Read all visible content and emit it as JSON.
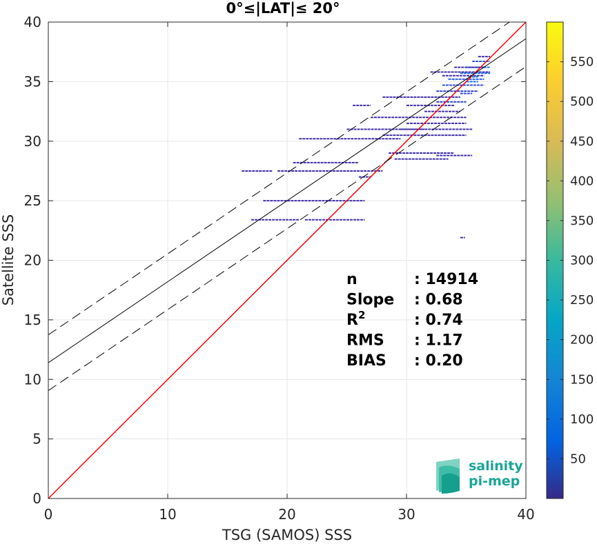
{
  "chart_data": {
    "type": "heatmap",
    "title": "0°≤|LAT|≤ 20°",
    "xlabel": "TSG (SAMOS) SSS",
    "ylabel": "Satellite SSS",
    "xlim": [
      0,
      40
    ],
    "ylim": [
      0,
      40
    ],
    "xticks": [
      0,
      10,
      20,
      30,
      40
    ],
    "yticks": [
      0,
      5,
      10,
      15,
      20,
      25,
      30,
      35,
      40
    ],
    "grid": true,
    "identity_line": {
      "color": "#ff0000",
      "intercept": 0,
      "slope": 1
    },
    "regression": {
      "intercept": 11.4,
      "slope": 0.68,
      "band_offset": 2.34,
      "color": "#000000"
    },
    "stats": [
      {
        "label": "n",
        "value": ": 14914"
      },
      {
        "label": "Slope",
        "value": ": 0.68"
      },
      {
        "label": "R",
        "sup": "2",
        "value": ": 0.74"
      },
      {
        "label": "RMS",
        "value": ": 1.17"
      },
      {
        "label": "BIAS",
        "value": ": 0.20"
      }
    ],
    "colorbar": {
      "min": 0,
      "max": 600,
      "ticks": [
        50,
        100,
        150,
        200,
        250,
        300,
        350,
        400,
        450,
        500,
        550
      ],
      "colormap": "parula"
    },
    "density_segments": [
      {
        "x0": 16.2,
        "x1": 18.8,
        "y": 27.5,
        "c": 1
      },
      {
        "x0": 19.2,
        "x1": 28.0,
        "y": 27.5,
        "c": 1
      },
      {
        "x0": 17.0,
        "x1": 21.0,
        "y": 23.4,
        "c": 1
      },
      {
        "x0": 21.5,
        "x1": 26.5,
        "y": 23.4,
        "c": 1
      },
      {
        "x0": 18.0,
        "x1": 26.5,
        "y": 25.0,
        "c": 1
      },
      {
        "x0": 20.5,
        "x1": 26.0,
        "y": 28.2,
        "c": 1
      },
      {
        "x0": 21.0,
        "x1": 29.5,
        "y": 30.2,
        "c": 1
      },
      {
        "x0": 25.0,
        "x1": 31.5,
        "y": 31.0,
        "c": 1
      },
      {
        "x0": 28.0,
        "x1": 35.0,
        "y": 30.5,
        "c": 1
      },
      {
        "x0": 28.5,
        "x1": 34.0,
        "y": 29.0,
        "c": 1
      },
      {
        "x0": 29.0,
        "x1": 33.5,
        "y": 28.5,
        "c": 1
      },
      {
        "x0": 32.5,
        "x1": 35.5,
        "y": 28.8,
        "c": 1
      },
      {
        "x0": 29.5,
        "x1": 35.5,
        "y": 31.0,
        "c": 1
      },
      {
        "x0": 30.0,
        "x1": 35.0,
        "y": 31.5,
        "c": 1
      },
      {
        "x0": 27.0,
        "x1": 35.0,
        "y": 32.0,
        "c": 1
      },
      {
        "x0": 31.5,
        "x1": 34.5,
        "y": 32.5,
        "c": 1
      },
      {
        "x0": 30.0,
        "x1": 34.0,
        "y": 33.0,
        "c": 1
      },
      {
        "x0": 32.5,
        "x1": 35.0,
        "y": 33.3,
        "c": 2
      },
      {
        "x0": 28.0,
        "x1": 34.5,
        "y": 33.7,
        "c": 1
      },
      {
        "x0": 32.5,
        "x1": 36.0,
        "y": 34.2,
        "c": 2
      },
      {
        "x0": 33.0,
        "x1": 36.5,
        "y": 34.7,
        "c": 3
      },
      {
        "x0": 33.5,
        "x1": 36.5,
        "y": 35.2,
        "c": 4
      },
      {
        "x0": 34.5,
        "x1": 37.0,
        "y": 35.7,
        "c": 5
      },
      {
        "x0": 35.0,
        "x1": 37.0,
        "y": 36.2,
        "c": 5
      },
      {
        "x0": 35.5,
        "x1": 37.0,
        "y": 36.7,
        "c": 3
      },
      {
        "x0": 36.0,
        "x1": 37.0,
        "y": 37.1,
        "c": 1
      },
      {
        "x0": 32.0,
        "x1": 37.0,
        "y": 35.8,
        "c": 1
      },
      {
        "x0": 34.0,
        "x1": 36.5,
        "y": 36.2,
        "c": 1
      },
      {
        "x0": 33.0,
        "x1": 36.5,
        "y": 35.5,
        "c": 1
      },
      {
        "x0": 25.5,
        "x1": 27.0,
        "y": 33.0,
        "c": 1
      },
      {
        "x0": 26.0,
        "x1": 27.0,
        "y": 27.0,
        "c": 1
      },
      {
        "x0": 34.5,
        "x1": 34.9,
        "y": 21.9,
        "c": 1
      },
      {
        "x0": 34.5,
        "x1": 35.5,
        "y": 34.0,
        "c": 3
      },
      {
        "x0": 35.0,
        "x1": 36.0,
        "y": 35.0,
        "c": 5
      },
      {
        "x0": 35.2,
        "x1": 36.0,
        "y": 35.4,
        "c": 6
      }
    ]
  },
  "logo": {
    "line1": "salinity",
    "line2": "pi-mep",
    "color": "#1aa596"
  }
}
